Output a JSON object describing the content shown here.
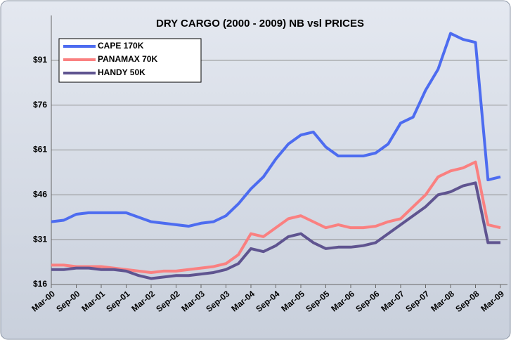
{
  "chart_data": {
    "type": "line",
    "title": "DRY CARGO (2000 - 2009) NB vsl PRICES",
    "categories": [
      "Mar-00",
      null,
      "Sep-00",
      null,
      "Mar-01",
      null,
      "Sep-01",
      null,
      "Mar-02",
      null,
      "Sep-02",
      null,
      "Mar-03",
      null,
      "Sep-03",
      null,
      "Mar-04",
      null,
      "Sep-04",
      null,
      "Mar-05",
      null,
      "Sep-05",
      null,
      "Mar-06",
      null,
      "Sep-06",
      null,
      "Mar-07",
      null,
      "Sep-07",
      null,
      "Mar-08",
      null,
      "Sep-08",
      null,
      "Mar-09"
    ],
    "series": [
      {
        "name": "CAPE 170K",
        "color": "#4d6cf0",
        "values": [
          37,
          37.5,
          39.5,
          40,
          40,
          40,
          40,
          38.5,
          37,
          36.5,
          36,
          35.5,
          36.5,
          37,
          39,
          43,
          48,
          52,
          58,
          63,
          66,
          67,
          62,
          59,
          59,
          59,
          60,
          63,
          70,
          72,
          81,
          88,
          100,
          98,
          97,
          51,
          52
        ]
      },
      {
        "name": "PANAMAX 70K",
        "color": "#fa8080",
        "values": [
          22.5,
          22.5,
          22,
          22,
          22,
          21.5,
          21,
          20.5,
          20,
          20.5,
          20.5,
          21,
          21.5,
          22,
          23,
          26,
          33,
          32,
          35,
          38,
          39,
          37,
          35,
          36,
          35,
          35,
          35.5,
          37,
          38,
          42,
          46,
          52,
          54,
          55,
          57,
          36,
          35
        ]
      },
      {
        "name": "HANDY 50K",
        "color": "#5f5490",
        "values": [
          21,
          21,
          21.5,
          21.5,
          21,
          21,
          20.5,
          19,
          18,
          18.5,
          19,
          19,
          19.5,
          20,
          21,
          23,
          28,
          27,
          29,
          32,
          33,
          30,
          28,
          28.5,
          28.5,
          29,
          30,
          33,
          36,
          39,
          42,
          46,
          47,
          49,
          50,
          30,
          30
        ]
      }
    ],
    "ylim": [
      16,
      106
    ],
    "yticks": [
      {
        "value": 16,
        "label": "$16"
      },
      {
        "value": 31,
        "label": "$31"
      },
      {
        "value": 46,
        "label": "$46"
      },
      {
        "value": 61,
        "label": "$61"
      },
      {
        "value": 76,
        "label": "$76"
      },
      {
        "value": 91,
        "label": "$91"
      }
    ],
    "grid": true,
    "legend": "upper left"
  }
}
